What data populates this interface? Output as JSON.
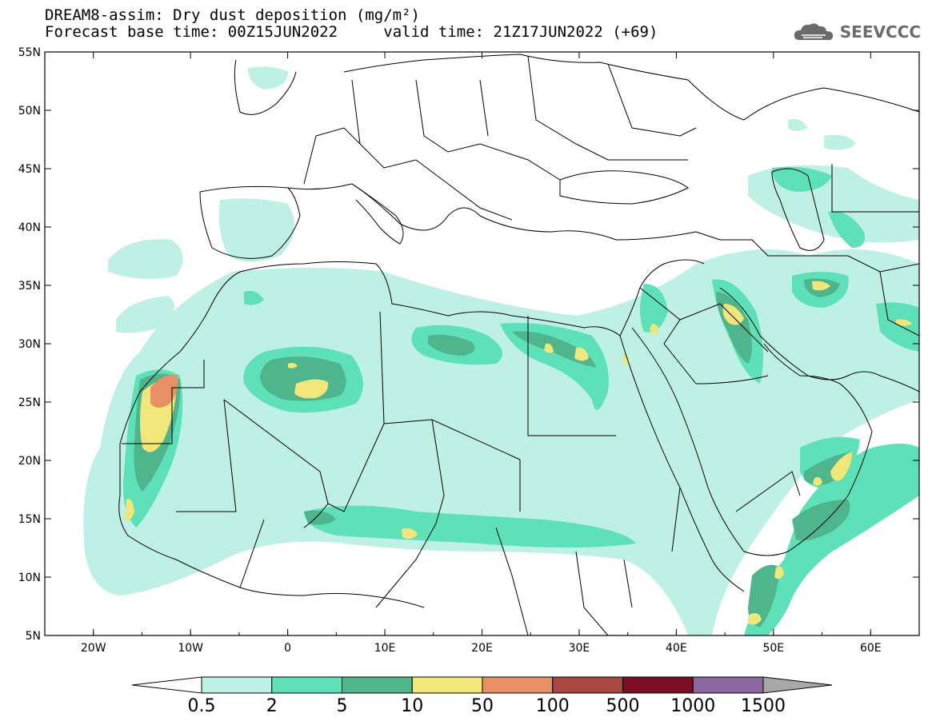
{
  "title": {
    "line1": "DREAM8-assim: Dry dust deposition (mg/m²)",
    "line2_left": "Forecast base time: 00Z15JUN2022",
    "line2_right": "valid time: 21Z17JUN2022 (+69)"
  },
  "logo": {
    "text": "SEEVCCC",
    "icon": "cloud-icon"
  },
  "axes": {
    "lat_ticks": [
      "55N",
      "50N",
      "45N",
      "40N",
      "35N",
      "30N",
      "25N",
      "20N",
      "15N",
      "10N",
      "5N"
    ],
    "lon_ticks": [
      "20W",
      "10W",
      "0",
      "10E",
      "20E",
      "30E",
      "40E",
      "50E",
      "60E"
    ],
    "lon_range": [
      -25,
      65
    ],
    "lat_range": [
      5,
      55
    ]
  },
  "colorbar": {
    "labels": [
      "0.5",
      "2",
      "5",
      "10",
      "50",
      "100",
      "500",
      "1000",
      "1500"
    ],
    "colors": [
      "#bff0e6",
      "#5ee0b8",
      "#4fb58c",
      "#f0e67a",
      "#e88f64",
      "#a8473f",
      "#7c0d25",
      "#8c67a0",
      "#a8a8a8"
    ]
  }
}
